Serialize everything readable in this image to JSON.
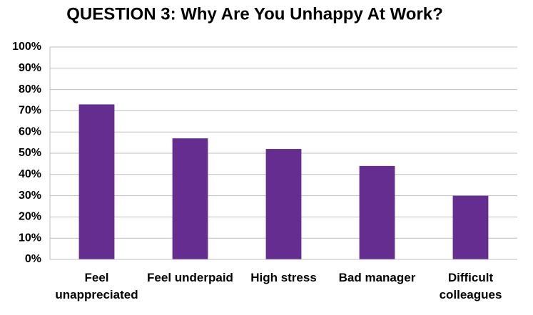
{
  "chart_data": {
    "type": "bar",
    "title": "QUESTION 3: Why Are You Unhappy At Work?",
    "categories": [
      "Feel unappreciated",
      "Feel underpaid",
      "High stress",
      "Bad manager",
      "Difficult colleagues"
    ],
    "values": [
      73,
      57,
      52,
      44,
      30
    ],
    "color": "#662d91",
    "ylim": [
      0,
      100
    ],
    "yticks": [
      {
        "value": 0,
        "label": "0%"
      },
      {
        "value": 10,
        "label": "10%"
      },
      {
        "value": 20,
        "label": "20%"
      },
      {
        "value": 30,
        "label": "30%"
      },
      {
        "value": 40,
        "label": "40%"
      },
      {
        "value": 50,
        "label": "50%"
      },
      {
        "value": 60,
        "label": "60%"
      },
      {
        "value": 70,
        "label": "70%"
      },
      {
        "value": 80,
        "label": "80%"
      },
      {
        "value": 90,
        "label": "90%"
      },
      {
        "value": 100,
        "label": "100%"
      }
    ],
    "grid": true
  }
}
